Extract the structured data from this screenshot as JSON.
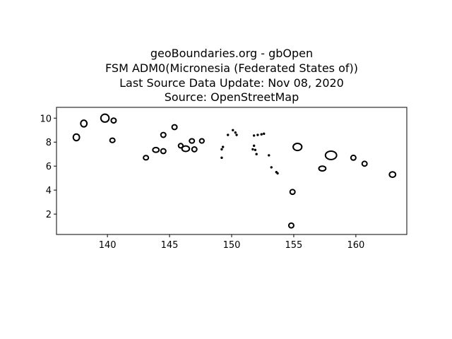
{
  "title_lines": [
    "geoBoundaries.org - gbOpen",
    "FSM ADM0(Micronesia (Federated States of))",
    "Last Source Data Update: Nov 08, 2020",
    "Source: OpenStreetMap"
  ],
  "chart_data": {
    "type": "map",
    "xlim": [
      135.9,
      164.1
    ],
    "ylim": [
      0.3,
      10.9
    ],
    "x_ticks": [
      140,
      145,
      150,
      155,
      160
    ],
    "y_ticks": [
      2,
      4,
      6,
      8,
      10
    ],
    "grid": false,
    "outline_color": "#000000",
    "islands": [
      {
        "lon": 137.5,
        "lat": 8.4,
        "rx": 0.25,
        "ry": 0.28
      },
      {
        "lon": 138.1,
        "lat": 9.55,
        "rx": 0.25,
        "ry": 0.28
      },
      {
        "lon": 139.8,
        "lat": 10.0,
        "rx": 0.33,
        "ry": 0.33
      },
      {
        "lon": 140.5,
        "lat": 9.8,
        "rx": 0.2,
        "ry": 0.2
      },
      {
        "lon": 140.4,
        "lat": 8.15,
        "rx": 0.2,
        "ry": 0.18
      },
      {
        "lon": 143.1,
        "lat": 6.7,
        "rx": 0.2,
        "ry": 0.18
      },
      {
        "lon": 143.9,
        "lat": 7.35,
        "rx": 0.25,
        "ry": 0.2
      },
      {
        "lon": 144.5,
        "lat": 7.25,
        "rx": 0.2,
        "ry": 0.2
      },
      {
        "lon": 144.5,
        "lat": 8.6,
        "rx": 0.2,
        "ry": 0.2
      },
      {
        "lon": 145.4,
        "lat": 9.25,
        "rx": 0.2,
        "ry": 0.2
      },
      {
        "lon": 145.9,
        "lat": 7.7,
        "rx": 0.18,
        "ry": 0.18
      },
      {
        "lon": 146.3,
        "lat": 7.45,
        "rx": 0.3,
        "ry": 0.23
      },
      {
        "lon": 146.8,
        "lat": 8.1,
        "rx": 0.2,
        "ry": 0.18
      },
      {
        "lon": 147.0,
        "lat": 7.4,
        "rx": 0.2,
        "ry": 0.2
      },
      {
        "lon": 147.6,
        "lat": 8.1,
        "rx": 0.18,
        "ry": 0.18
      },
      {
        "lon": 155.3,
        "lat": 7.6,
        "rx": 0.35,
        "ry": 0.3
      },
      {
        "lon": 157.3,
        "lat": 5.8,
        "rx": 0.28,
        "ry": 0.2
      },
      {
        "lon": 158.0,
        "lat": 6.9,
        "rx": 0.45,
        "ry": 0.35
      },
      {
        "lon": 159.8,
        "lat": 6.7,
        "rx": 0.2,
        "ry": 0.2
      },
      {
        "lon": 160.7,
        "lat": 6.2,
        "rx": 0.2,
        "ry": 0.2
      },
      {
        "lon": 162.95,
        "lat": 5.3,
        "rx": 0.25,
        "ry": 0.23
      },
      {
        "lon": 154.9,
        "lat": 3.85,
        "rx": 0.2,
        "ry": 0.2
      },
      {
        "lon": 154.8,
        "lat": 1.05,
        "rx": 0.2,
        "ry": 0.2
      }
    ],
    "islets": [
      {
        "lon": 149.7,
        "lat": 8.6
      },
      {
        "lon": 150.1,
        "lat": 9.0
      },
      {
        "lon": 150.3,
        "lat": 8.8
      },
      {
        "lon": 150.4,
        "lat": 8.6
      },
      {
        "lon": 149.2,
        "lat": 7.4
      },
      {
        "lon": 149.3,
        "lat": 7.6
      },
      {
        "lon": 149.2,
        "lat": 6.7
      },
      {
        "lon": 151.8,
        "lat": 8.55
      },
      {
        "lon": 152.1,
        "lat": 8.6
      },
      {
        "lon": 152.4,
        "lat": 8.65
      },
      {
        "lon": 152.6,
        "lat": 8.7
      },
      {
        "lon": 151.7,
        "lat": 7.4
      },
      {
        "lon": 151.9,
        "lat": 7.35
      },
      {
        "lon": 151.8,
        "lat": 7.7
      },
      {
        "lon": 152.0,
        "lat": 7.0
      },
      {
        "lon": 153.0,
        "lat": 6.9
      },
      {
        "lon": 153.2,
        "lat": 5.9
      },
      {
        "lon": 153.6,
        "lat": 5.5
      },
      {
        "lon": 153.7,
        "lat": 5.4
      }
    ]
  }
}
